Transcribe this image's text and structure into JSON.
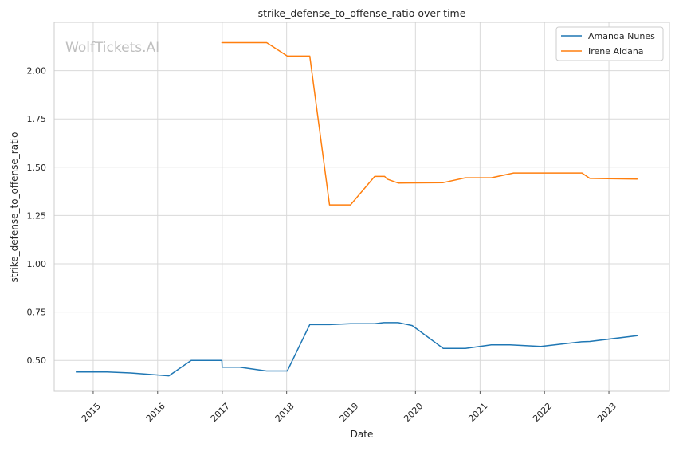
{
  "chart_data": {
    "type": "line",
    "title": "strike_defense_to_offense_ratio over time",
    "xlabel": "Date",
    "ylabel": "strike_defense_to_offense_ratio",
    "watermark": "WolfTickets.AI",
    "x_type": "date",
    "xlim": [
      "2014-05-25",
      "2023-12-10"
    ],
    "ylim": [
      0.34,
      2.25
    ],
    "yticks": [
      0.5,
      0.75,
      1.0,
      1.25,
      1.5,
      1.75,
      2.0
    ],
    "ytick_labels": [
      "0.50",
      "0.75",
      "1.00",
      "1.25",
      "1.50",
      "1.75",
      "2.00"
    ],
    "xticks": [
      "2015-01-01",
      "2016-01-01",
      "2017-01-01",
      "2018-01-01",
      "2019-01-01",
      "2020-01-01",
      "2021-01-01",
      "2022-01-01",
      "2023-01-01"
    ],
    "xtick_labels": [
      "2015",
      "2016",
      "2017",
      "2018",
      "2019",
      "2020",
      "2021",
      "2022",
      "2023"
    ],
    "grid": true,
    "legend_position": "top-right",
    "series": [
      {
        "name": "Amanda Nunes",
        "color": "#1f77b4",
        "points": [
          [
            "2014-09-27",
            0.44
          ],
          [
            "2015-03-21",
            0.44
          ],
          [
            "2015-08-01",
            0.435
          ],
          [
            "2016-03-05",
            0.42
          ],
          [
            "2016-07-09",
            0.5
          ],
          [
            "2016-12-30",
            0.5
          ],
          [
            "2017-01-01",
            0.465
          ],
          [
            "2017-04-10",
            0.465
          ],
          [
            "2017-09-09",
            0.445
          ],
          [
            "2018-01-05",
            0.445
          ],
          [
            "2018-05-12",
            0.685
          ],
          [
            "2018-09-01",
            0.685
          ],
          [
            "2018-12-29",
            0.69
          ],
          [
            "2019-05-15",
            0.69
          ],
          [
            "2019-07-06",
            0.695
          ],
          [
            "2019-09-25",
            0.695
          ],
          [
            "2019-12-14",
            0.68
          ],
          [
            "2020-06-06",
            0.562
          ],
          [
            "2020-10-10",
            0.562
          ],
          [
            "2021-03-06",
            0.58
          ],
          [
            "2021-06-20",
            0.58
          ],
          [
            "2021-12-11",
            0.572
          ],
          [
            "2022-07-30",
            0.596
          ],
          [
            "2022-09-15",
            0.598
          ],
          [
            "2023-06-10",
            0.628
          ]
        ]
      },
      {
        "name": "Irene Aldana",
        "color": "#ff7f0e",
        "points": [
          [
            "2016-12-30",
            2.145
          ],
          [
            "2017-09-10",
            2.145
          ],
          [
            "2018-01-05",
            2.075
          ],
          [
            "2018-05-12",
            2.075
          ],
          [
            "2018-09-01",
            1.305
          ],
          [
            "2018-12-29",
            1.305
          ],
          [
            "2019-05-15",
            1.452
          ],
          [
            "2019-07-10",
            1.452
          ],
          [
            "2019-07-25",
            1.438
          ],
          [
            "2019-09-25",
            1.418
          ],
          [
            "2020-06-06",
            1.42
          ],
          [
            "2020-10-10",
            1.445
          ],
          [
            "2021-03-06",
            1.445
          ],
          [
            "2021-07-10",
            1.47
          ],
          [
            "2022-08-01",
            1.47
          ],
          [
            "2022-09-15",
            1.442
          ],
          [
            "2023-06-10",
            1.438
          ]
        ]
      }
    ]
  }
}
